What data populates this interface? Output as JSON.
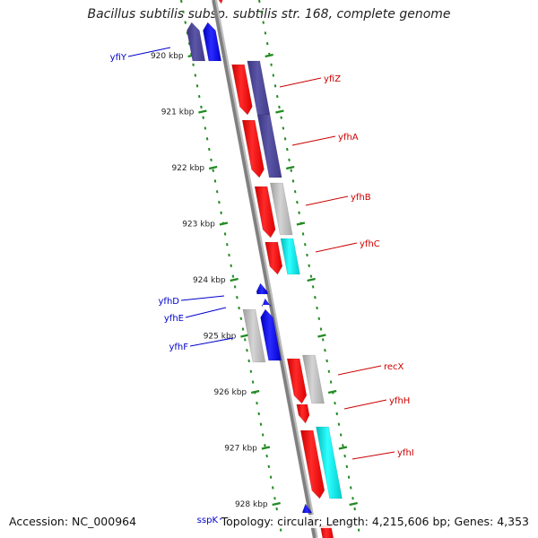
{
  "title": "Bacillus subtilis subsp. subtilis str. 168, complete genome",
  "accession_text": "Accession: NC_000964",
  "topology_text": "Topology: circular; Length: 4,215,606 bp; Genes: 4,353",
  "colors": {
    "red": "#ff0000",
    "blue": "#0000ff",
    "purple": "#4b4594",
    "gray": "#b8b8b8",
    "cyan": "#00e5e5",
    "axis": "#808080",
    "grid": "#228b22",
    "label_red": "#cc0000",
    "label_blue": "#0000cc"
  },
  "scale_ticks": [
    "920 kbp",
    "921 kbp",
    "922 kbp",
    "923 kbp",
    "924 kbp",
    "925 kbp",
    "926 kbp",
    "927 kbp",
    "928 kbp"
  ],
  "gene_labels": [
    {
      "name": "yfiY",
      "strand": "minus"
    },
    {
      "name": "yfiZ",
      "strand": "plus"
    },
    {
      "name": "yfhA",
      "strand": "plus"
    },
    {
      "name": "yfhB",
      "strand": "plus"
    },
    {
      "name": "yfhC",
      "strand": "plus"
    },
    {
      "name": "yfhD",
      "strand": "minus"
    },
    {
      "name": "yfhE",
      "strand": "minus"
    },
    {
      "name": "yfhF",
      "strand": "minus"
    },
    {
      "name": "recX",
      "strand": "plus"
    },
    {
      "name": "yfhH",
      "strand": "plus"
    },
    {
      "name": "yfhI",
      "strand": "plus"
    },
    {
      "name": "sspK",
      "strand": "minus"
    }
  ]
}
